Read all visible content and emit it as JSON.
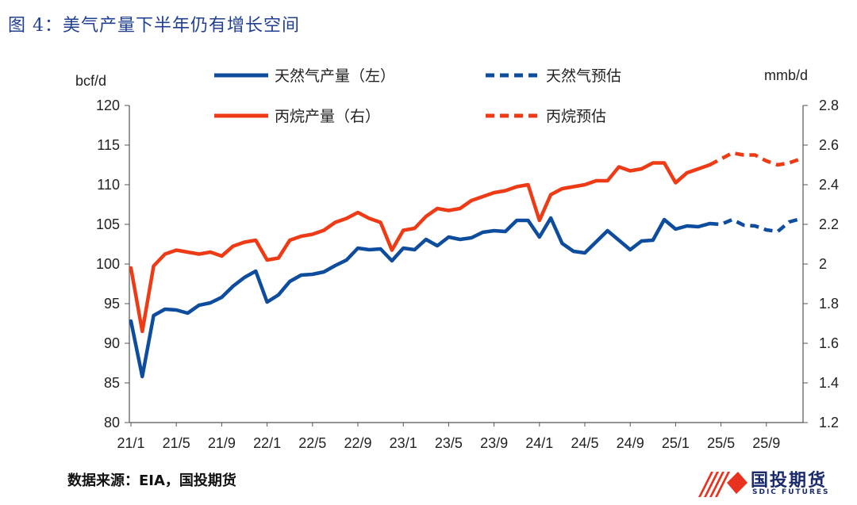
{
  "figure": {
    "title": "图 4：美气产量下半年仍有增长空间",
    "source": "数据来源：EIA，国投期货"
  },
  "logo": {
    "name": "国投期货",
    "sub": "SDIC FUTURES"
  },
  "colors": {
    "gas": "#0e4c9e",
    "propane": "#ee3b16"
  },
  "chart_data": {
    "type": "line",
    "left_unit": "bcf/d",
    "right_unit": "mmb/d",
    "y_left": {
      "min": 80,
      "max": 120,
      "ticks": [
        "120",
        "115",
        "110",
        "105",
        "100",
        "95",
        "90",
        "85",
        "80"
      ]
    },
    "y_right": {
      "min": 1.2,
      "max": 2.8,
      "ticks": [
        "2.8",
        "2.6",
        "2.4",
        "2.2",
        "2",
        "1.8",
        "1.6",
        "1.4",
        "1.2"
      ]
    },
    "x_ticks": [
      {
        "i": 0,
        "label": "21/1"
      },
      {
        "i": 4,
        "label": "21/5"
      },
      {
        "i": 8,
        "label": "21/9"
      },
      {
        "i": 12,
        "label": "22/1"
      },
      {
        "i": 16,
        "label": "22/5"
      },
      {
        "i": 20,
        "label": "22/9"
      },
      {
        "i": 24,
        "label": "23/1"
      },
      {
        "i": 28,
        "label": "23/5"
      },
      {
        "i": 32,
        "label": "23/9"
      },
      {
        "i": 36,
        "label": "24/1"
      },
      {
        "i": 40,
        "label": "24/5"
      },
      {
        "i": 44,
        "label": "24/9"
      },
      {
        "i": 48,
        "label": "25/1"
      },
      {
        "i": 52,
        "label": "25/5"
      },
      {
        "i": 56,
        "label": "25/9"
      }
    ],
    "n_months": 60,
    "series": [
      {
        "name": "天然气产量（左）",
        "axis": "left",
        "style": "solid",
        "color_key": "gas",
        "start": 0,
        "values": [
          92.8,
          85.8,
          93.5,
          94.3,
          94.2,
          93.8,
          94.8,
          95.1,
          95.8,
          97.2,
          98.3,
          99.1,
          95.2,
          96.1,
          97.8,
          98.6,
          98.7,
          99.0,
          99.8,
          100.5,
          102.0,
          101.8,
          101.9,
          100.4,
          102.0,
          101.8,
          103.1,
          102.3,
          103.4,
          103.1,
          103.3,
          104.0,
          104.2,
          104.1,
          105.5,
          105.5,
          103.4,
          105.8,
          102.6,
          101.6,
          101.4,
          102.8,
          104.2,
          103.0,
          101.8,
          102.9,
          103.0,
          105.6,
          104.4,
          104.8,
          104.7,
          105.1
        ]
      },
      {
        "name": "天然气预估",
        "axis": "left",
        "style": "dashed",
        "color_key": "gas",
        "start": 51,
        "values": [
          105.1,
          105.0,
          105.6,
          104.9,
          104.8,
          104.3,
          104.1,
          105.3,
          105.7
        ]
      },
      {
        "name": "丙烷产量（右）",
        "axis": "right",
        "style": "solid",
        "color_key": "propane",
        "start": 0,
        "values": [
          1.98,
          1.66,
          1.99,
          2.05,
          2.07,
          2.06,
          2.05,
          2.06,
          2.04,
          2.09,
          2.11,
          2.12,
          2.02,
          2.03,
          2.12,
          2.14,
          2.15,
          2.17,
          2.21,
          2.23,
          2.26,
          2.23,
          2.21,
          2.07,
          2.17,
          2.18,
          2.24,
          2.28,
          2.27,
          2.28,
          2.32,
          2.34,
          2.36,
          2.37,
          2.39,
          2.4,
          2.22,
          2.35,
          2.38,
          2.39,
          2.4,
          2.42,
          2.42,
          2.49,
          2.47,
          2.48,
          2.51,
          2.51,
          2.41,
          2.46,
          2.48,
          2.5
        ]
      },
      {
        "name": "丙烷预估",
        "axis": "right",
        "style": "dashed",
        "color_key": "propane",
        "start": 51,
        "values": [
          2.5,
          2.53,
          2.56,
          2.55,
          2.55,
          2.52,
          2.5,
          2.51,
          2.53
        ]
      }
    ]
  }
}
